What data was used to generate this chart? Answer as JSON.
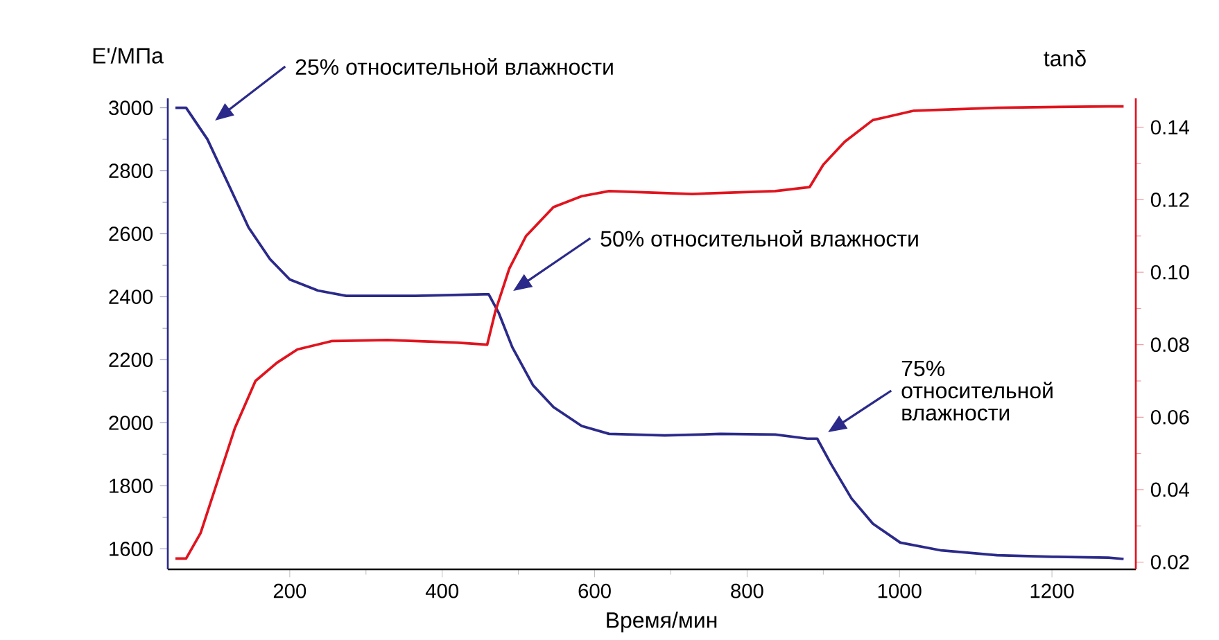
{
  "chart_data": {
    "type": "line",
    "xlabel": "Время/мин",
    "ylabel": "E'/МПа",
    "y2label": "tanδ",
    "xlim": [
      40,
      1310
    ],
    "ylim": [
      1535,
      3030
    ],
    "y2lim": [
      0.018,
      0.148
    ],
    "xticks": [
      200,
      400,
      600,
      800,
      1000,
      1200
    ],
    "yticks": [
      1600,
      1800,
      2000,
      2200,
      2400,
      2600,
      2800,
      3000
    ],
    "y2ticks": [
      0.02,
      0.04,
      0.06,
      0.08,
      {
        "value": 0.1,
        "label": "0.10"
      },
      0.12,
      0.14
    ],
    "grid": false,
    "line_style": "solid",
    "marker": "none",
    "series": [
      {
        "color": "#2b2a8a",
        "x": [
          50,
          64,
          92,
          119,
          146,
          174,
          200,
          237,
          274,
          365,
          455,
          461,
          474,
          492,
          519,
          546,
          583,
          619,
          692,
          765,
          837,
          879,
          892,
          910,
          937,
          965,
          1001,
          1055,
          1128,
          1201,
          1274,
          1294
        ],
        "values": [
          3000,
          3000,
          2900,
          2760,
          2620,
          2520,
          2455,
          2420,
          2403,
          2403,
          2408,
          2408,
          2350,
          2240,
          2120,
          2050,
          1990,
          1965,
          1960,
          1965,
          1963,
          1950,
          1950,
          1870,
          1760,
          1680,
          1620,
          1595,
          1580,
          1575,
          1572,
          1568
        ]
      },
      {
        "color": "#e0141e",
        "axis": "y2",
        "x": [
          50,
          64,
          83,
          101,
          128,
          155,
          183,
          210,
          255,
          328,
          419,
          459,
          470,
          488,
          510,
          546,
          583,
          619,
          728,
          837,
          882,
          900,
          928,
          965,
          1019,
          1128,
          1274,
          1294
        ],
        "values": [
          0.021,
          0.021,
          0.028,
          0.0396,
          0.057,
          0.07,
          0.075,
          0.0787,
          0.081,
          0.0813,
          0.0806,
          0.08,
          0.0894,
          0.101,
          0.11,
          0.118,
          0.121,
          0.1224,
          0.1216,
          0.1224,
          0.1235,
          0.1297,
          0.136,
          0.142,
          0.1446,
          0.1454,
          0.1458,
          0.1458
        ]
      }
    ],
    "annotations": [
      "25% относительной влажности",
      "50% относительной влажности",
      "75% относительной влажности"
    ]
  }
}
